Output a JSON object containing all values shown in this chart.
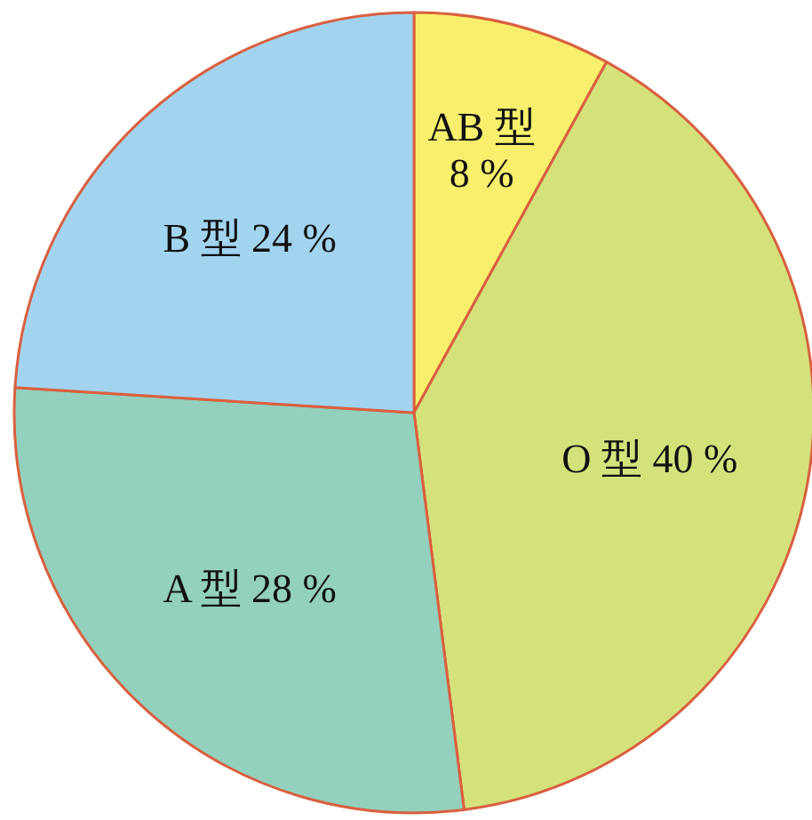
{
  "chart_data": {
    "type": "pie",
    "categories": [
      "AB 型",
      "O 型",
      "A 型",
      "B 型"
    ],
    "values": [
      8,
      40,
      28,
      24
    ],
    "value_labels": [
      "8 %",
      "40 %",
      "28 %",
      "24 %"
    ],
    "colors": [
      "#f8f06c",
      "#d5e27c",
      "#93d0bd",
      "#a2d4f0"
    ]
  }
}
